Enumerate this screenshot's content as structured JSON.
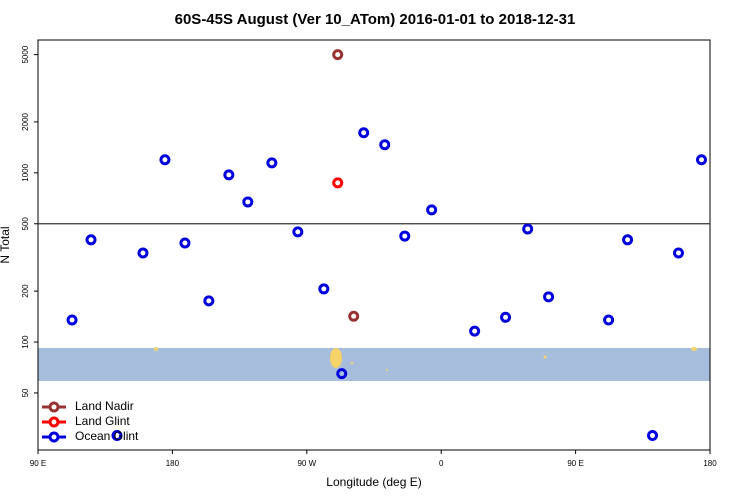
{
  "chart_data": {
    "type": "scatter",
    "title": "60S-45S August (Ver 10_ATom)   2016-01-01 to 2018-12-31",
    "x_label": "Longitude (deg E)",
    "y_label": "N Total",
    "log_y": true,
    "legend": "bottom-left",
    "hline": 500,
    "xlim": [
      90,
      540
    ],
    "ylim": [
      23,
      6100
    ],
    "xticks": [
      {
        "value": 90,
        "label": "90 E"
      },
      180,
      {
        "value": 270,
        "label": "90 W"
      },
      {
        "value": 360,
        "label": "0"
      },
      {
        "value": 450,
        "label": "90 E"
      },
      {
        "value": 540,
        "label": "180"
      }
    ],
    "yticks": [
      50,
      100,
      200,
      500,
      1000,
      2000,
      5000
    ],
    "series": [
      {
        "name": "Land Nadir",
        "color": "#993333",
        "x": [
          290.7,
          301.4
        ],
        "values": [
          5000,
          142
        ]
      },
      {
        "name": "Land Glint",
        "color": "#ff0000",
        "x": [
          290.7
        ],
        "values": [
          873
        ]
      },
      {
        "name": "Ocean Glint",
        "color": "#0000dd",
        "x": [
          112.8,
          125.5,
          142.9,
          160.3,
          175.0,
          188.4,
          204.4,
          217.8,
          230.5,
          246.6,
          264.0,
          281.4,
          293.4,
          308.1,
          322.2,
          335.6,
          353.6,
          382.4,
          403.1,
          417.9,
          431.9,
          472.1,
          484.8,
          501.5,
          518.9,
          534.3
        ],
        "values": [
          135,
          402,
          28,
          336,
          1195,
          385,
          175,
          973,
          673,
          1146,
          448,
          206,
          65,
          1727,
          1466,
          423,
          604,
          116,
          140,
          466,
          185,
          135,
          402,
          28,
          336,
          1195
        ]
      }
    ]
  }
}
